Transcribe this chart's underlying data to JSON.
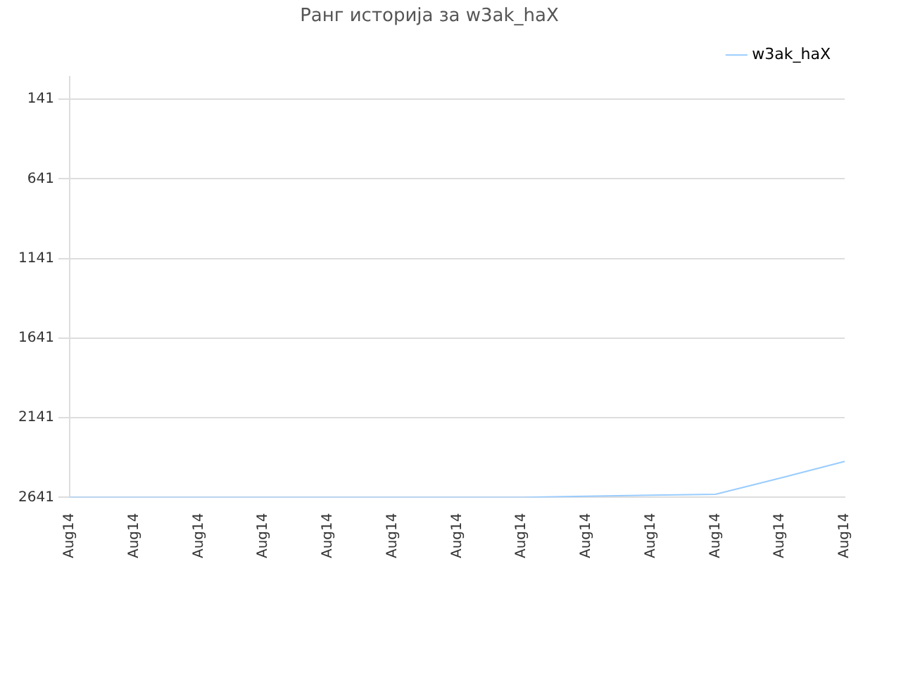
{
  "chart_data": {
    "type": "line",
    "title": "Ранг историја за w3ak_haX",
    "categories": [
      "Aug14",
      "Aug14",
      "Aug14",
      "Aug14",
      "Aug14",
      "Aug14",
      "Aug14",
      "Aug14",
      "Aug14",
      "Aug14",
      "Aug14",
      "Aug14",
      "Aug14"
    ],
    "series": [
      {
        "name": "w3ak_haX",
        "color": "#99ccff",
        "values": [
          2641,
          2641,
          2641,
          2641,
          2641,
          2641,
          2641,
          2641,
          2633,
          2627,
          2621,
          2520,
          2415
        ]
      }
    ],
    "ylim": [
      2641,
      0
    ],
    "yticks": [
      141,
      641,
      1141,
      1641,
      2141,
      2641
    ],
    "grid": "y",
    "legend": "top right",
    "marker": "none"
  }
}
